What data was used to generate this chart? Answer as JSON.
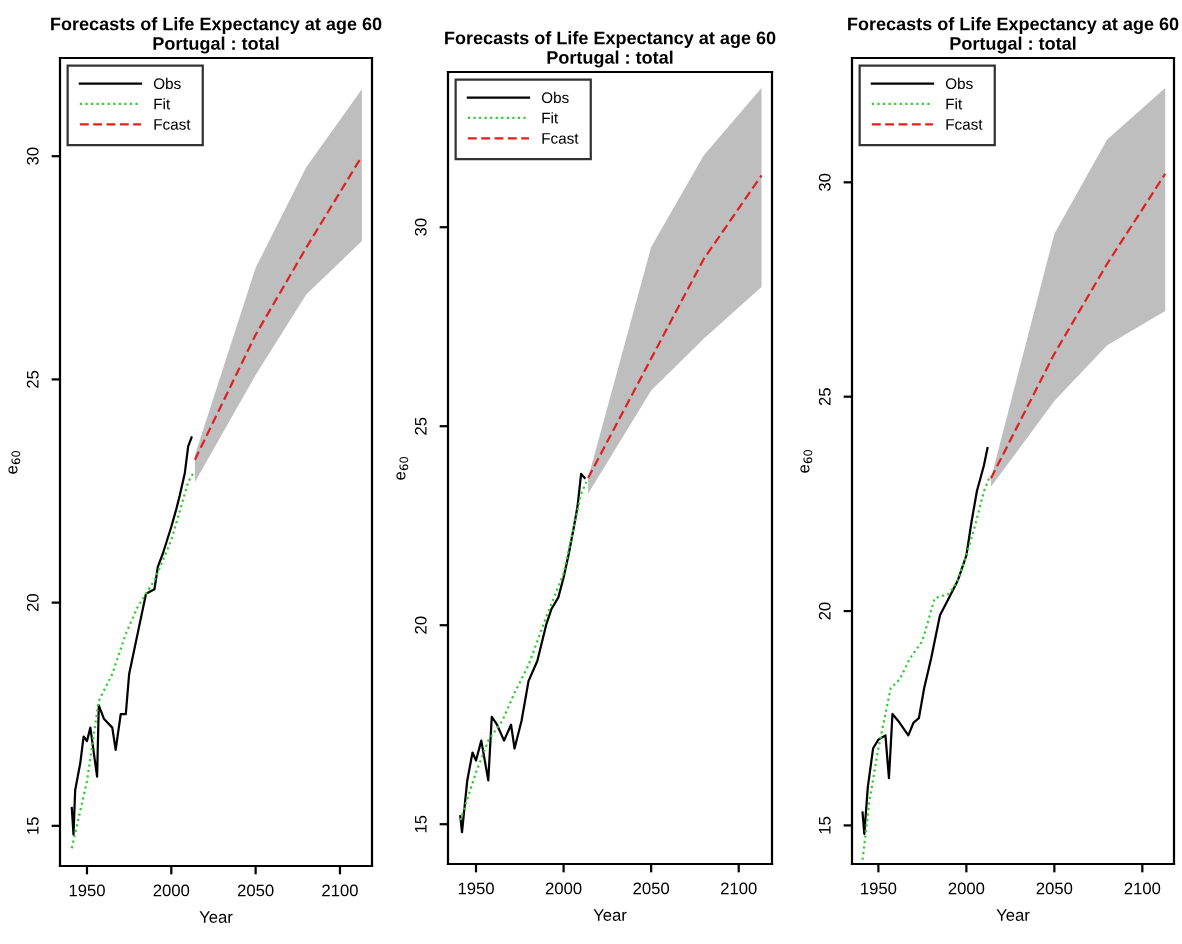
{
  "chart_data": [
    {
      "type": "line",
      "title": "Forecasts of Life Expectancy at age 60",
      "subtitle": "Portugal : total",
      "xlabel": "Year",
      "ylabel": "e$_{60}$",
      "xlim": [
        1934,
        2119
      ],
      "ylim": [
        14.1,
        32.2
      ],
      "xticks": [
        1950,
        2000,
        2050,
        2100
      ],
      "yticks": [
        15,
        20,
        25,
        30
      ],
      "legend": "top left",
      "grid": false,
      "series": [
        {
          "name": "Obs",
          "color": "#000000",
          "line_style": "solid",
          "x": [
            1941,
            1942,
            1943,
            1946,
            1948,
            1950,
            1952,
            1956,
            1957,
            1960,
            1965,
            1967,
            1970,
            1973,
            1975,
            1980,
            1985,
            1990,
            1992,
            1995,
            2000,
            2003,
            2005,
            2008,
            2010,
            2012
          ],
          "values": [
            15.4,
            14.8,
            15.8,
            16.4,
            17.0,
            16.9,
            17.2,
            16.1,
            17.7,
            17.4,
            17.2,
            16.7,
            17.5,
            17.5,
            18.4,
            19.3,
            20.2,
            20.3,
            20.8,
            21.1,
            21.7,
            22.1,
            22.4,
            22.9,
            23.5,
            23.7
          ]
        },
        {
          "name": "Fit",
          "color": "#33cc33",
          "line_style": "dotted",
          "x": [
            1941,
            1950,
            1957,
            1965,
            1973,
            1980,
            1990,
            2000,
            2010,
            2013
          ],
          "values": [
            14.5,
            16.0,
            17.8,
            18.4,
            19.3,
            19.9,
            20.5,
            21.4,
            22.7,
            22.9
          ]
        },
        {
          "name": "Fcast",
          "color": "#dd2222",
          "line_style": "dashed",
          "x": [
            2014,
            2050,
            2080,
            2113
          ],
          "values": [
            23.2,
            26.0,
            27.95,
            30.0
          ],
          "lower": [
            22.7,
            25.1,
            26.9,
            28.1
          ],
          "upper": [
            23.3,
            27.5,
            29.75,
            31.5
          ]
        }
      ]
    },
    {
      "type": "line",
      "title": "Forecasts of Life Expectancy at age 60",
      "subtitle": "Portugal : total",
      "xlabel": "Year",
      "ylabel": "e$_{60}$",
      "xlim": [
        1934,
        2119
      ],
      "ylim": [
        14.0,
        33.9
      ],
      "xticks": [
        1950,
        2000,
        2050,
        2100
      ],
      "yticks": [
        15,
        20,
        25,
        30
      ],
      "legend": "top left",
      "grid": false,
      "series": [
        {
          "name": "Obs",
          "color": "#000000",
          "line_style": "solid",
          "x": [
            1941,
            1942,
            1945,
            1948,
            1950,
            1953,
            1957,
            1959,
            1962,
            1966,
            1970,
            1972,
            1976,
            1980,
            1985,
            1990,
            1993,
            1997,
            2000,
            2003,
            2006,
            2008,
            2010,
            2012
          ],
          "values": [
            15.2,
            14.8,
            16.1,
            16.8,
            16.6,
            17.1,
            16.1,
            17.7,
            17.5,
            17.1,
            17.5,
            16.9,
            17.6,
            18.6,
            19.1,
            20.0,
            20.4,
            20.7,
            21.2,
            21.8,
            22.5,
            23.0,
            23.8,
            23.7
          ]
        },
        {
          "name": "Fit",
          "color": "#33cc33",
          "line_style": "dotted",
          "x": [
            1941,
            1950,
            1957,
            1965,
            1972,
            1980,
            1990,
            2000,
            2010,
            2013
          ],
          "values": [
            15.1,
            16.3,
            17.1,
            17.6,
            18.3,
            19.0,
            20.2,
            21.3,
            23.3,
            23.6
          ]
        },
        {
          "name": "Fcast",
          "color": "#dd2222",
          "line_style": "dashed",
          "x": [
            2014,
            2050,
            2080,
            2113
          ],
          "values": [
            23.7,
            26.7,
            29.2,
            31.3
          ],
          "lower": [
            23.3,
            25.9,
            27.2,
            28.5
          ],
          "upper": [
            23.7,
            29.5,
            31.8,
            33.5
          ]
        }
      ]
    },
    {
      "type": "line",
      "title": "Forecasts of Life Expectancy at age 60",
      "subtitle": "Portugal : total",
      "xlabel": "Year",
      "ylabel": "e$_{60}$",
      "xlim": [
        1935,
        2118
      ],
      "ylim": [
        14.1,
        32.9
      ],
      "xticks": [
        1950,
        2000,
        2050,
        2100
      ],
      "yticks": [
        15,
        20,
        25,
        30
      ],
      "legend": "top left",
      "grid": false,
      "series": [
        {
          "name": "Obs",
          "color": "#000000",
          "line_style": "solid",
          "x": [
            1941,
            1942,
            1944,
            1947,
            1950,
            1954,
            1956,
            1958,
            1962,
            1967,
            1970,
            1973,
            1976,
            1980,
            1985,
            1990,
            1995,
            2000,
            2003,
            2006,
            2010,
            2012
          ],
          "values": [
            15.3,
            14.8,
            15.9,
            16.8,
            17.0,
            17.1,
            16.1,
            17.6,
            17.4,
            17.1,
            17.4,
            17.5,
            18.2,
            18.9,
            19.9,
            20.3,
            20.7,
            21.3,
            22.1,
            22.8,
            23.4,
            23.8
          ]
        },
        {
          "name": "Fit",
          "color": "#33cc33",
          "line_style": "dotted",
          "x": [
            1941,
            1945,
            1950,
            1957,
            1962,
            1968,
            1975,
            1982,
            1990,
            1995,
            2000,
            2005,
            2010,
            2013
          ],
          "values": [
            14.2,
            15.6,
            16.8,
            18.2,
            18.4,
            18.9,
            19.3,
            20.3,
            20.4,
            20.7,
            21.3,
            22.0,
            22.8,
            23.1
          ]
        },
        {
          "name": "Fcast",
          "color": "#dd2222",
          "line_style": "dashed",
          "x": [
            2014,
            2050,
            2080,
            2113
          ],
          "values": [
            23.1,
            26.0,
            28.1,
            30.2
          ],
          "lower": [
            22.9,
            24.9,
            26.2,
            27.0
          ],
          "upper": [
            23.1,
            28.8,
            31.0,
            32.2
          ]
        }
      ]
    }
  ]
}
